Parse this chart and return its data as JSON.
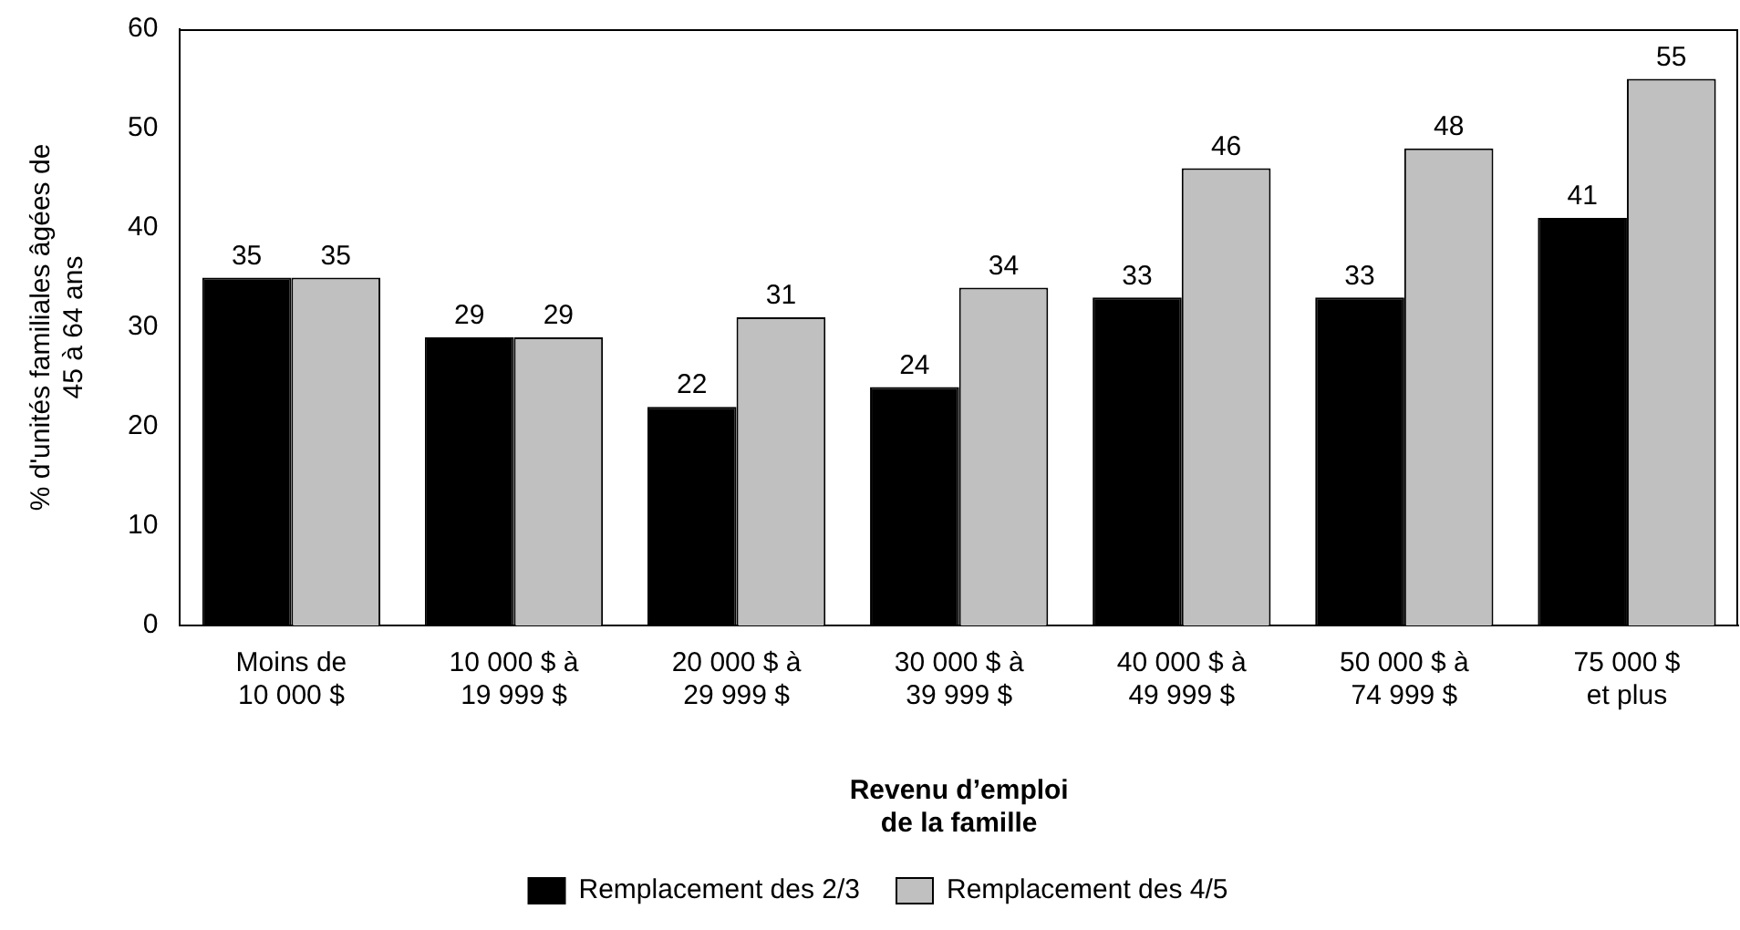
{
  "chart_data": {
    "type": "bar",
    "xlabel": "Revenu d’emploi\nde la famille",
    "ylabel": "% d'unités familiales âgées de\n45 à 64 ans",
    "categories": [
      "Moins de\n10 000 $",
      "10 000 $ à\n19 999 $",
      "20 000 $ à\n29 999 $",
      "30 000 $ à\n39 999 $",
      "40 000 $ à\n49 999 $",
      "50 000 $ à\n74 999 $",
      "75 000 $\net plus"
    ],
    "series": [
      {
        "name": "Remplacement des 2/3",
        "color": "#000000",
        "values": [
          35,
          29,
          22,
          24,
          33,
          33,
          41
        ]
      },
      {
        "name": "Remplacement des 4/5",
        "color": "#c0c0c0",
        "values": [
          35,
          29,
          31,
          34,
          46,
          48,
          55
        ]
      }
    ],
    "ylim": [
      0,
      60
    ],
    "yticks": [
      0,
      10,
      20,
      30,
      40,
      50,
      60
    ],
    "grid": false,
    "legend": "bottom",
    "data_labels": true
  }
}
